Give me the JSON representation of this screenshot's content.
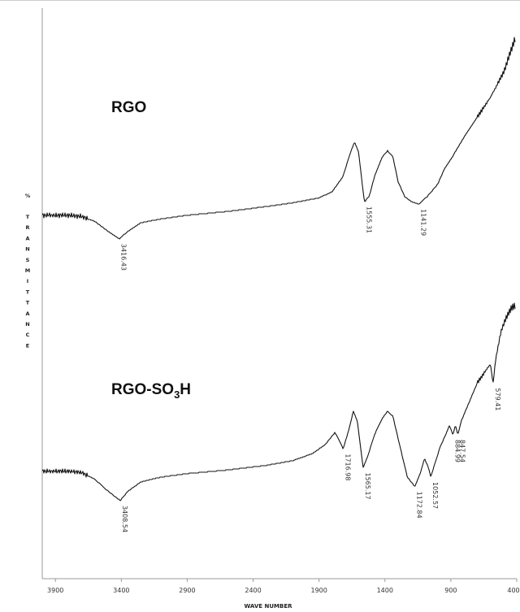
{
  "chart_data": {
    "type": "line",
    "title": "",
    "xlabel": "WAVE NUMBER",
    "ylabel": "% TRANSMITTANCE",
    "xlim": [
      4000,
      400
    ],
    "x_reversed": true,
    "grid": false,
    "ticks": [
      "3900",
      "3400",
      "2900",
      "2400",
      "1900",
      "1400",
      "900",
      "400"
    ],
    "tick_values": [
      3900,
      3400,
      2900,
      2400,
      1900,
      1400,
      900,
      400
    ],
    "y_scale": "relative transmittance (arbitrary)",
    "series": [
      {
        "name": "RGO",
        "points": [
          [
            4000,
            30.5
          ],
          [
            3800,
            30.5
          ],
          [
            3700,
            30.0
          ],
          [
            3600,
            28.0
          ],
          [
            3500,
            24.0
          ],
          [
            3416.43,
            21.0
          ],
          [
            3350,
            24.0
          ],
          [
            3250,
            27.5
          ],
          [
            3100,
            29.0
          ],
          [
            2900,
            30.5
          ],
          [
            2600,
            32.0
          ],
          [
            2300,
            34.0
          ],
          [
            2100,
            35.5
          ],
          [
            1900,
            37.5
          ],
          [
            1800,
            40.0
          ],
          [
            1720,
            46.0
          ],
          [
            1660,
            56.0
          ],
          [
            1630,
            60.0
          ],
          [
            1600,
            56.0
          ],
          [
            1570,
            42.0
          ],
          [
            1555.31,
            36.0
          ],
          [
            1520,
            38.0
          ],
          [
            1480,
            46.0
          ],
          [
            1420,
            54.0
          ],
          [
            1380,
            56.5
          ],
          [
            1340,
            54.0
          ],
          [
            1300,
            44.0
          ],
          [
            1250,
            38.0
          ],
          [
            1200,
            36.0
          ],
          [
            1141.29,
            35.0
          ],
          [
            1080,
            38.0
          ],
          [
            1000,
            43.0
          ],
          [
            950,
            49.0
          ],
          [
            900,
            53.0
          ],
          [
            800,
            62.0
          ],
          [
            700,
            70.0
          ],
          [
            600,
            78.0
          ],
          [
            500,
            88.0
          ],
          [
            430,
            99.0
          ],
          [
            410,
            102.0
          ]
        ],
        "peaks": [
          {
            "x": 3416.43,
            "label": "3416.43"
          },
          {
            "x": 1555.31,
            "label": "1555.31"
          },
          {
            "x": 1141.29,
            "label": "1141.29"
          }
        ]
      },
      {
        "name": "RGO-SO3H",
        "points": [
          [
            4000,
            30.5
          ],
          [
            3800,
            30.5
          ],
          [
            3700,
            30.0
          ],
          [
            3600,
            27.0
          ],
          [
            3500,
            22.0
          ],
          [
            3408.54,
            18.0
          ],
          [
            3350,
            22.0
          ],
          [
            3250,
            26.0
          ],
          [
            3100,
            28.0
          ],
          [
            2900,
            29.5
          ],
          [
            2600,
            31.0
          ],
          [
            2300,
            33.0
          ],
          [
            2100,
            35.0
          ],
          [
            1950,
            38.0
          ],
          [
            1850,
            42.0
          ],
          [
            1780,
            47.0
          ],
          [
            1740,
            43.0
          ],
          [
            1716.98,
            40.0
          ],
          [
            1680,
            47.0
          ],
          [
            1640,
            56.0
          ],
          [
            1610,
            52.0
          ],
          [
            1565.17,
            32.0
          ],
          [
            1530,
            37.0
          ],
          [
            1480,
            46.0
          ],
          [
            1420,
            53.0
          ],
          [
            1380,
            56.0
          ],
          [
            1340,
            54.0
          ],
          [
            1290,
            42.0
          ],
          [
            1230,
            28.0
          ],
          [
            1172.84,
            24.0
          ],
          [
            1130,
            30.0
          ],
          [
            1100,
            36.0
          ],
          [
            1070,
            32.0
          ],
          [
            1052.57,
            28.0
          ],
          [
            1020,
            34.0
          ],
          [
            980,
            41.0
          ],
          [
            940,
            46.0
          ],
          [
            910,
            50.0
          ],
          [
            884.99,
            46.0
          ],
          [
            865,
            50.0
          ],
          [
            847.54,
            46.0
          ],
          [
            820,
            52.0
          ],
          [
            760,
            60.0
          ],
          [
            700,
            68.0
          ],
          [
            640,
            73.0
          ],
          [
            600,
            76.0
          ],
          [
            579.41,
            68.0
          ],
          [
            560,
            78.0
          ],
          [
            520,
            90.0
          ],
          [
            480,
            96.0
          ],
          [
            440,
            100.0
          ],
          [
            410,
            101.0
          ]
        ],
        "peaks": [
          {
            "x": 3408.54,
            "label": "3408.54"
          },
          {
            "x": 1716.98,
            "label": "1716.98"
          },
          {
            "x": 1565.17,
            "label": "1565.17"
          },
          {
            "x": 1172.84,
            "label": "1172.84"
          },
          {
            "x": 1052.57,
            "label": "1052.57"
          },
          {
            "x": 884.99,
            "label": "884.99"
          },
          {
            "x": 847.54,
            "label": "847.54"
          },
          {
            "x": 579.41,
            "label": "579.41"
          }
        ]
      }
    ]
  },
  "labels": {
    "rgo": "RGO",
    "rgo_so3h_main": "RGO-SO",
    "rgo_so3h_sub": "3",
    "rgo_so3h_end": "H",
    "ylabel_chars": [
      "%",
      "T",
      "R",
      "A",
      "N",
      "S",
      "M",
      "I",
      "T",
      "T",
      "A",
      "N",
      "C",
      "E"
    ],
    "xlabel": "WAVE NUMBER"
  }
}
